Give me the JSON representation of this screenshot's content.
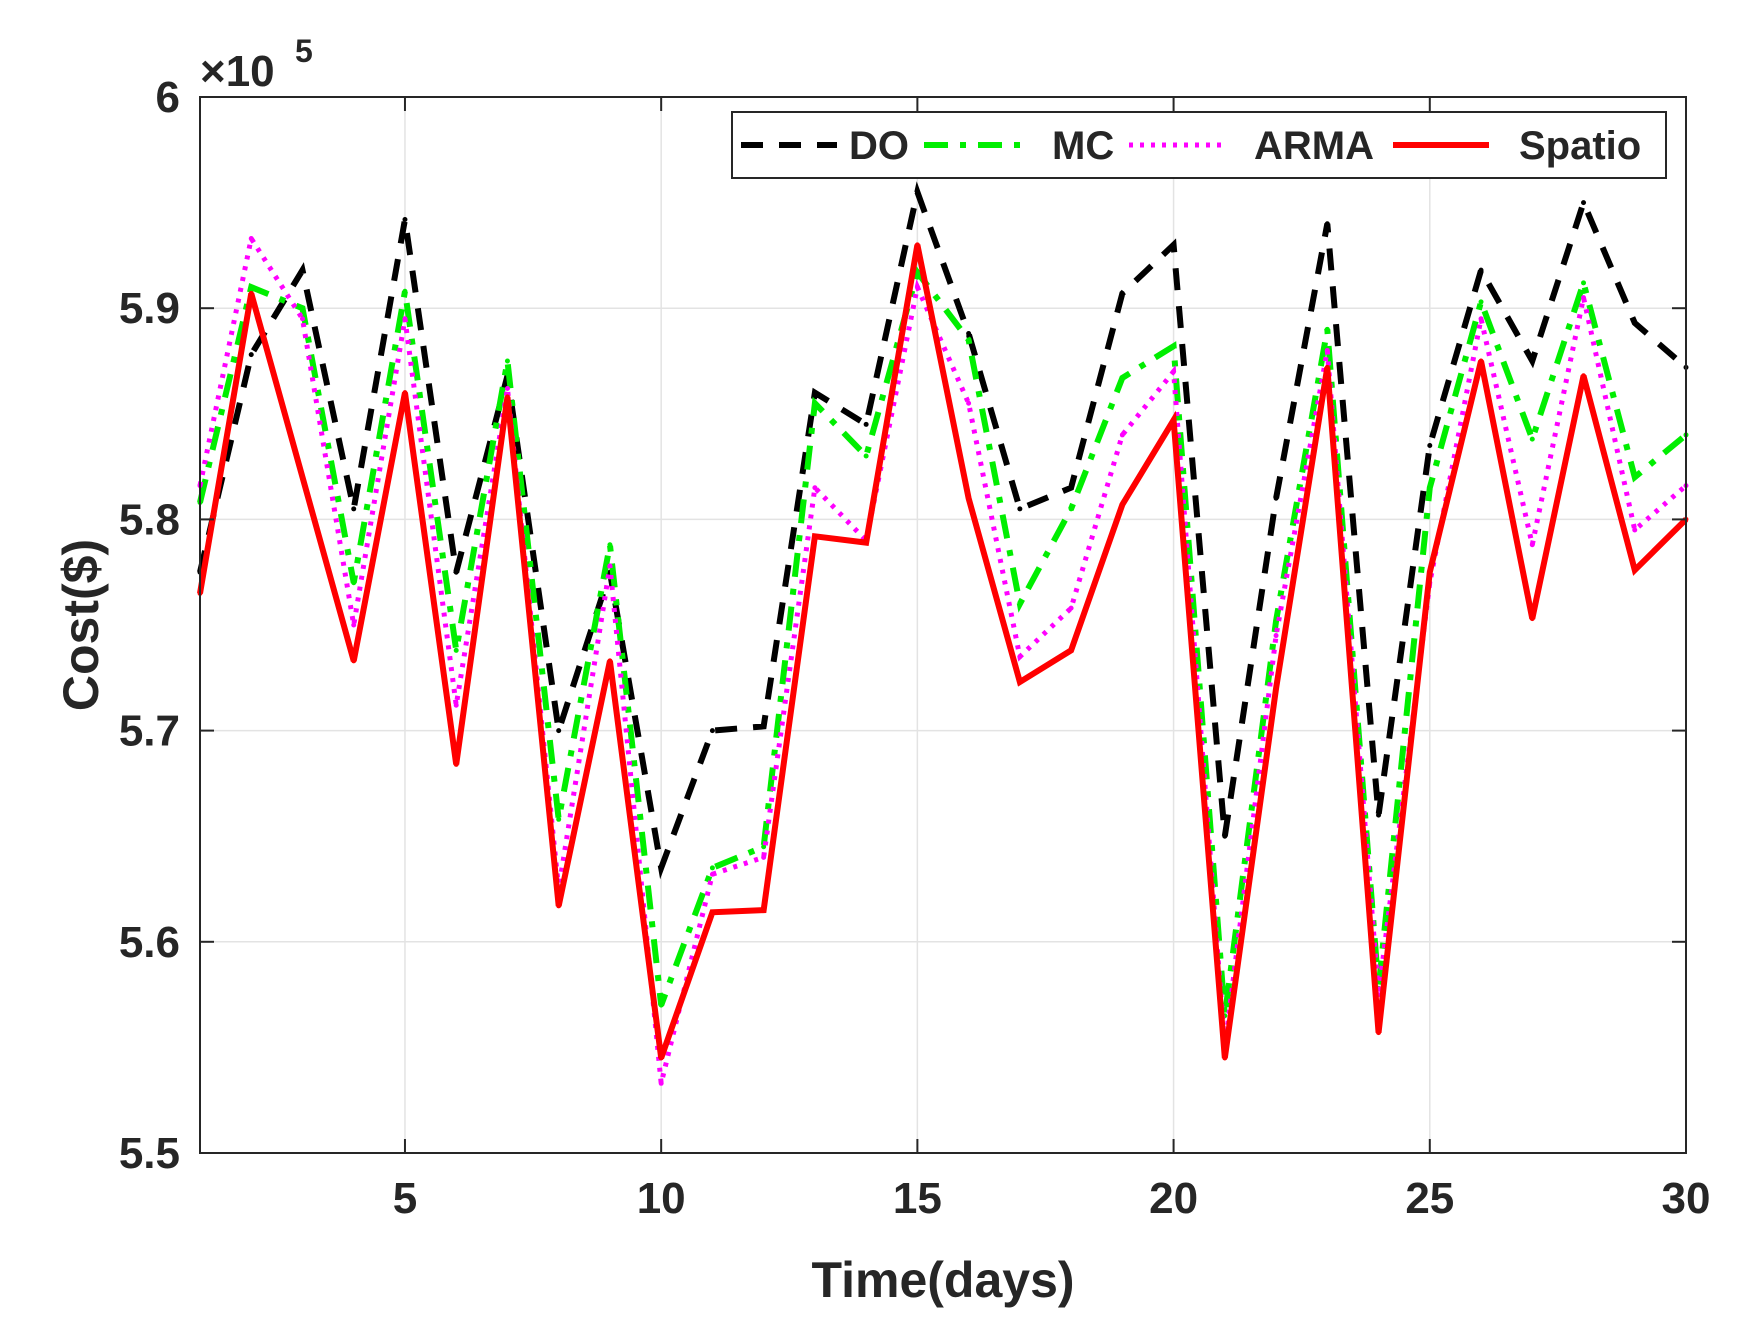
{
  "chart_data": {
    "type": "line",
    "title": "",
    "xlabel": "Time(days)",
    "ylabel": "Cost($)",
    "y_scale_label": "×10",
    "y_scale_exponent": "5",
    "xlim": [
      1,
      30
    ],
    "ylim": [
      5.5,
      6.0
    ],
    "x_ticks": [
      5,
      10,
      15,
      20,
      25,
      30
    ],
    "x_tick_labels": [
      "5",
      "10",
      "15",
      "20",
      "25",
      "30"
    ],
    "y_ticks": [
      5.5,
      5.6,
      5.7,
      5.8,
      5.9,
      6.0
    ],
    "y_tick_labels": [
      "5.5",
      "5.6",
      "5.7",
      "5.8",
      "5.9",
      "6"
    ],
    "grid": true,
    "legend_position": "top-right",
    "x": [
      1,
      2,
      3,
      4,
      5,
      6,
      7,
      8,
      9,
      10,
      11,
      12,
      13,
      14,
      15,
      16,
      17,
      18,
      19,
      20,
      21,
      22,
      23,
      24,
      25,
      26,
      27,
      28,
      29,
      30
    ],
    "series": [
      {
        "name": "DO",
        "color": "#000000",
        "style": "dashed",
        "values": [
          5.775,
          5.878,
          5.918,
          5.805,
          5.942,
          5.775,
          5.868,
          5.7,
          5.775,
          5.635,
          5.7,
          5.702,
          5.86,
          5.845,
          5.955,
          5.888,
          5.805,
          5.815,
          5.907,
          5.93,
          5.65,
          5.81,
          5.94,
          5.66,
          5.835,
          5.918,
          5.875,
          5.95,
          5.893,
          5.872
        ]
      },
      {
        "name": "MC",
        "color": "#00ee00",
        "style": "dashdot",
        "values": [
          5.808,
          5.91,
          5.9,
          5.77,
          5.908,
          5.738,
          5.875,
          5.658,
          5.788,
          5.57,
          5.635,
          5.645,
          5.855,
          5.83,
          5.917,
          5.885,
          5.76,
          5.805,
          5.867,
          5.882,
          5.565,
          5.752,
          5.89,
          5.578,
          5.815,
          5.903,
          5.838,
          5.912,
          5.82,
          5.84
        ]
      },
      {
        "name": "ARMA",
        "color": "#ff00ff",
        "style": "dotted",
        "values": [
          5.816,
          5.933,
          5.895,
          5.75,
          5.895,
          5.712,
          5.862,
          5.625,
          5.778,
          5.533,
          5.632,
          5.64,
          5.815,
          5.79,
          5.91,
          5.855,
          5.735,
          5.758,
          5.84,
          5.87,
          5.55,
          5.745,
          5.88,
          5.575,
          5.77,
          5.895,
          5.788,
          5.905,
          5.795,
          5.816
        ]
      },
      {
        "name": "Spatio",
        "color": "#ff0000",
        "style": "solid",
        "values": [
          5.765,
          5.907,
          5.82,
          5.733,
          5.86,
          5.684,
          5.858,
          5.617,
          5.733,
          5.545,
          5.614,
          5.615,
          5.792,
          5.789,
          5.93,
          5.81,
          5.723,
          5.738,
          5.807,
          5.847,
          5.545,
          5.72,
          5.872,
          5.557,
          5.775,
          5.875,
          5.753,
          5.868,
          5.776,
          5.8
        ]
      }
    ]
  }
}
